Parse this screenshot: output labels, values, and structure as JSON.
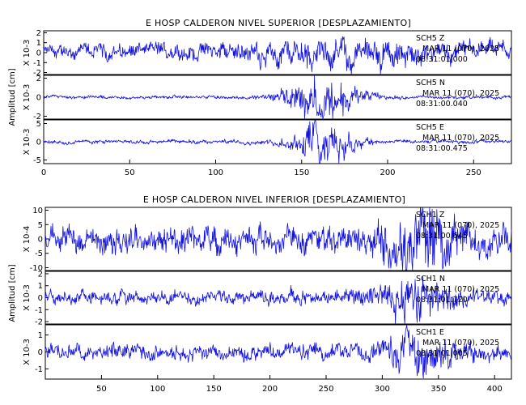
{
  "chart_data": [
    {
      "type": "line",
      "title": "E HOSP CALDERON NIVEL SUPERIOR [DESPLAZAMIENTO]",
      "ylabel": "Amplitud [cm]",
      "xlim": [
        0,
        272
      ],
      "xticks": [
        0,
        50,
        100,
        150,
        200,
        250
      ],
      "grid": false,
      "panels": [
        {
          "scale_label": "X 10-3",
          "ylim": [
            -2.2,
            2.2
          ],
          "yticks": [
            -2,
            -1,
            0,
            1,
            2
          ],
          "station": "SCH5",
          "component": "Z",
          "date": "MAR 11 (070), 2025",
          "time": "08:31:01.000",
          "amp_base": 0.55,
          "amp_strong": 0.5,
          "strong_center": 180,
          "strong_width": 55,
          "trend": 0.2,
          "noise": 0.25
        },
        {
          "scale_label": "X 10-3",
          "ylim": [
            -2.3,
            2.3
          ],
          "yticks": [
            -2,
            0,
            2
          ],
          "station": "SCH5",
          "component": "N",
          "date": "MAR 11 (070), 2025",
          "time": "08:31:00.040",
          "amp_base": 0.12,
          "amp_strong": 1.6,
          "strong_center": 163,
          "strong_width": 20,
          "trend": 0.0,
          "noise": 0.05
        },
        {
          "scale_label": "X 10-3",
          "ylim": [
            -6,
            6
          ],
          "yticks": [
            -5,
            0,
            5
          ],
          "station": "SCH5",
          "component": "E",
          "date": "MAR 11 (070), 2025",
          "time": "08:31:00.475",
          "amp_base": 0.35,
          "amp_strong": 4.0,
          "strong_center": 163,
          "strong_width": 18,
          "trend": 0.0,
          "noise": 0.1
        }
      ]
    },
    {
      "type": "line",
      "title": "E HOSP CALDERON NIVEL INFERIOR [DESPLAZAMIENTO]",
      "ylabel": "Amplitud [cm]",
      "xlim": [
        0,
        415
      ],
      "xticks": [
        50,
        100,
        150,
        200,
        250,
        300,
        350,
        400
      ],
      "grid": false,
      "panels": [
        {
          "scale_label": "X 10-4",
          "ylim": [
            -11,
            11
          ],
          "yticks": [
            -10,
            -5,
            0,
            5,
            10
          ],
          "station": "SCH1",
          "component": "Z",
          "date": "MAR 11 (070), 2025",
          "time": "08:31:00.645",
          "amp_base": 3.2,
          "amp_strong": 6.0,
          "strong_center": 335,
          "strong_width": 35,
          "trend": 0.0,
          "noise": 1.4
        },
        {
          "scale_label": "X 10-3",
          "ylim": [
            -2.2,
            2.2
          ],
          "yticks": [
            -2,
            -1,
            0,
            1,
            2
          ],
          "station": "SCH1",
          "component": "N",
          "date": "MAR 11 (070), 2025",
          "time": "08:31:01.720",
          "amp_base": 0.4,
          "amp_strong": 0.9,
          "strong_center": 330,
          "strong_width": 35,
          "trend": 0.0,
          "noise": 0.15
        },
        {
          "scale_label": "X 10-3",
          "ylim": [
            -1.6,
            1.6
          ],
          "yticks": [
            -1,
            0,
            1
          ],
          "station": "SCH1",
          "component": "E",
          "date": "MAR 11 (070), 2025",
          "time": "08:31:01.005",
          "amp_base": 0.32,
          "amp_strong": 0.6,
          "strong_center": 330,
          "strong_width": 35,
          "trend": 0.0,
          "noise": 0.12
        }
      ]
    }
  ]
}
